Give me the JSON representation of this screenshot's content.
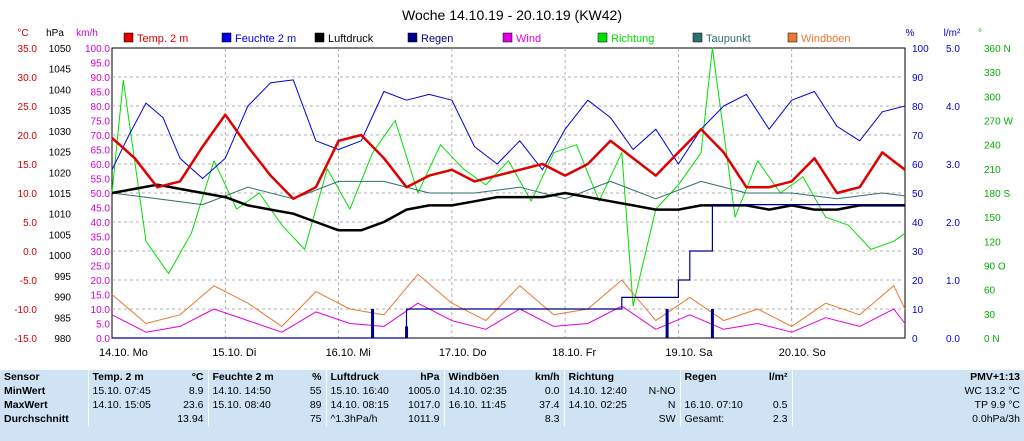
{
  "chart_data": {
    "type": "line",
    "title": "Woche 14.10.19 - 20.10.19 (KW42)",
    "unit_labels": {
      "temp": "°C",
      "pressure": "hPa",
      "wind": "km/h",
      "humidity": "%",
      "rain": "l/m²",
      "direction": "°"
    },
    "axes": {
      "temp": {
        "min": -15,
        "max": 35,
        "ticks": [
          "35.0",
          "30.0",
          "25.0",
          "20.0",
          "15.0",
          "10.0",
          "5.0",
          "0.0",
          "-5.0",
          "-10.0",
          "-15.0"
        ]
      },
      "pressure": {
        "min": 980,
        "max": 1050,
        "ticks": [
          "1050",
          "1045",
          "1040",
          "1035",
          "1030",
          "1025",
          "1020",
          "1015",
          "1010",
          "1005",
          "1000",
          "995",
          "990",
          "985",
          "980"
        ]
      },
      "wind": {
        "min": 0,
        "max": 100,
        "ticks": [
          "100.0",
          "95.0",
          "90.0",
          "85.0",
          "80.0",
          "75.0",
          "70.0",
          "65.0",
          "60.0",
          "55.0",
          "50.0",
          "45.0",
          "40.0",
          "35.0",
          "30.0",
          "25.0",
          "20.0",
          "15.0",
          "10.0",
          "5.0",
          "0.0"
        ]
      },
      "humidity": {
        "min": 0,
        "max": 100,
        "ticks": [
          "100",
          "90",
          "80",
          "70",
          "60",
          "50",
          "40",
          "30",
          "20",
          "10",
          "0"
        ]
      },
      "rain": {
        "min": 0,
        "max": 5,
        "ticks": [
          "5.0",
          "4.0",
          "3.0",
          "2.0",
          "1.0",
          "0.0"
        ]
      },
      "direction": {
        "min": 0,
        "max": 360,
        "ticks": [
          "360 N",
          "330",
          "300",
          "270 W",
          "240",
          "210",
          "180 S",
          "150",
          "120",
          "90 O",
          "60",
          "30",
          "0 N"
        ]
      }
    },
    "x_ticks": [
      "14.10.  Mo",
      "15.10.  Di",
      "16.10.  Mi",
      "17.10.  Do",
      "18.10.  Fr",
      "19.10.  Sa",
      "20.10.  So"
    ],
    "legend": [
      {
        "name": "Temp. 2 m",
        "color": "#e00000"
      },
      {
        "name": "Feuchte  2 m",
        "color": "#0000e0"
      },
      {
        "name": "Luftdruck",
        "color": "#000000"
      },
      {
        "name": "Regen",
        "color": "#00008b"
      },
      {
        "name": "Wind",
        "color": "#e000e0"
      },
      {
        "name": "Richtung",
        "color": "#00e000"
      },
      {
        "name": "Taupunkt",
        "color": "#2f6f6f"
      },
      {
        "name": "Windböen",
        "color": "#e87830"
      }
    ],
    "series": [
      {
        "name": "Temp. 2 m",
        "axis": "temp",
        "color": "#e00000",
        "x": [
          0,
          0.2,
          0.4,
          0.6,
          0.8,
          1.0,
          1.2,
          1.4,
          1.6,
          1.8,
          2.0,
          2.2,
          2.4,
          2.6,
          2.8,
          3.0,
          3.2,
          3.4,
          3.6,
          3.8,
          4.0,
          4.2,
          4.4,
          4.6,
          4.8,
          5.0,
          5.2,
          5.4,
          5.6,
          5.8,
          6.0,
          6.2,
          6.4,
          6.6,
          6.8,
          7.0
        ],
        "y": [
          19.5,
          16,
          11,
          12,
          18,
          23.5,
          18,
          13,
          9,
          11,
          19,
          20,
          16,
          11,
          13,
          14,
          12,
          13,
          14,
          15,
          13,
          15,
          19,
          16,
          13,
          17,
          21,
          17,
          11,
          11,
          12,
          16,
          10,
          11,
          17,
          14
        ]
      },
      {
        "name": "Feuchte  2 m",
        "axis": "humidity",
        "color": "#0000e0",
        "x": [
          0,
          0.15,
          0.3,
          0.45,
          0.6,
          0.8,
          1.0,
          1.2,
          1.4,
          1.6,
          1.8,
          2.0,
          2.2,
          2.4,
          2.6,
          2.8,
          3.0,
          3.2,
          3.4,
          3.6,
          3.8,
          4.0,
          4.2,
          4.4,
          4.6,
          4.8,
          5.0,
          5.2,
          5.4,
          5.6,
          5.8,
          6.0,
          6.2,
          6.4,
          6.6,
          6.8,
          7.0
        ],
        "y": [
          58,
          70,
          81,
          76,
          62,
          55,
          62,
          80,
          88,
          89,
          68,
          65,
          68,
          85,
          82,
          84,
          82,
          66,
          60,
          68,
          58,
          72,
          82,
          76,
          65,
          72,
          60,
          72,
          80,
          84,
          72,
          82,
          85,
          73,
          68,
          78,
          80
        ]
      },
      {
        "name": "Luftdruck",
        "axis": "pressure",
        "color": "#000000",
        "x": [
          0,
          0.2,
          0.4,
          0.6,
          0.8,
          1.0,
          1.2,
          1.4,
          1.6,
          1.8,
          2.0,
          2.2,
          2.4,
          2.6,
          2.8,
          3.0,
          3.2,
          3.4,
          3.6,
          3.8,
          4.0,
          4.2,
          4.4,
          4.6,
          4.8,
          5.0,
          5.2,
          5.4,
          5.6,
          5.8,
          6.0,
          6.2,
          6.4,
          6.6,
          6.8,
          7.0
        ],
        "y": [
          1015,
          1016,
          1017,
          1016,
          1015,
          1014,
          1012,
          1011,
          1010,
          1008,
          1006,
          1006,
          1008,
          1011,
          1012,
          1012,
          1013,
          1014,
          1014,
          1014,
          1015,
          1014,
          1013,
          1012,
          1011,
          1011,
          1012,
          1012,
          1012,
          1011,
          1012,
          1011,
          1011,
          1012,
          1012,
          1012
        ]
      },
      {
        "name": "Taupunkt",
        "axis": "temp",
        "color": "#2f6f6f",
        "x": [
          0,
          0.4,
          0.8,
          1.2,
          1.6,
          2.0,
          2.4,
          2.8,
          3.2,
          3.6,
          4.0,
          4.4,
          4.8,
          5.2,
          5.6,
          6.0,
          6.4,
          6.8,
          7.0
        ],
        "y": [
          10,
          9,
          8,
          11,
          9,
          12,
          12,
          10,
          10,
          11,
          9,
          12,
          9,
          12,
          10,
          10,
          9,
          10,
          9.5
        ]
      },
      {
        "name": "Windböen",
        "axis": "wind",
        "color": "#e87830",
        "x": [
          0,
          0.3,
          0.6,
          0.9,
          1.2,
          1.5,
          1.8,
          2.1,
          2.4,
          2.7,
          3.0,
          3.3,
          3.6,
          3.9,
          4.2,
          4.5,
          4.8,
          5.1,
          5.4,
          5.7,
          6.0,
          6.3,
          6.6,
          6.9,
          7.0
        ],
        "y": [
          15,
          5,
          8,
          18,
          12,
          4,
          16,
          10,
          8,
          22,
          12,
          6,
          18,
          8,
          10,
          20,
          6,
          14,
          6,
          10,
          4,
          12,
          8,
          18,
          10
        ]
      },
      {
        "name": "Wind",
        "axis": "wind",
        "color": "#e000e0",
        "x": [
          0,
          0.3,
          0.6,
          0.9,
          1.2,
          1.5,
          1.8,
          2.1,
          2.4,
          2.7,
          3.0,
          3.3,
          3.6,
          3.9,
          4.2,
          4.5,
          4.8,
          5.1,
          5.4,
          5.7,
          6.0,
          6.3,
          6.6,
          6.9,
          7.0
        ],
        "y": [
          8,
          2,
          4,
          10,
          6,
          2,
          9,
          5,
          4,
          12,
          6,
          3,
          10,
          4,
          5,
          11,
          3,
          8,
          3,
          5,
          2,
          7,
          4,
          10,
          5
        ]
      },
      {
        "name": "Richtung",
        "axis": "direction",
        "color": "#00e000",
        "x": [
          0,
          0.1,
          0.3,
          0.5,
          0.7,
          0.9,
          1.1,
          1.3,
          1.5,
          1.7,
          1.9,
          2.1,
          2.3,
          2.5,
          2.7,
          2.9,
          3.1,
          3.3,
          3.5,
          3.7,
          3.9,
          4.1,
          4.3,
          4.5,
          4.6,
          4.8,
          5.0,
          5.2,
          5.3,
          5.5,
          5.7,
          5.9,
          6.1,
          6.3,
          6.5,
          6.7,
          6.9,
          7.0
        ],
        "y": [
          180,
          320,
          120,
          80,
          130,
          220,
          160,
          180,
          140,
          110,
          210,
          160,
          230,
          270,
          180,
          240,
          210,
          190,
          220,
          170,
          230,
          240,
          170,
          230,
          40,
          160,
          190,
          230,
          360,
          150,
          220,
          180,
          200,
          150,
          140,
          110,
          120,
          130
        ]
      }
    ],
    "rain_total_mm": {
      "x": [
        0,
        2.3,
        2.6,
        4.5,
        4.8,
        5.0,
        5.1,
        5.3,
        7.0
      ],
      "y": [
        0,
        0,
        0.5,
        0.7,
        0.7,
        1.0,
        1.5,
        2.3,
        2.3
      ]
    },
    "rain_bars": {
      "x": [
        2.3,
        2.6,
        4.9,
        5.3
      ],
      "y": [
        0.5,
        0.2,
        0.5,
        0.5
      ]
    }
  },
  "stats": {
    "columns": [
      {
        "title": "Sensor",
        "unit": ""
      },
      {
        "title": "Temp. 2 m",
        "unit": "°C"
      },
      {
        "title": "Feuchte  2 m",
        "unit": "%"
      },
      {
        "title": "Luftdruck",
        "unit": "hPa"
      },
      {
        "title": "Windböen",
        "unit": "km/h"
      },
      {
        "title": "Richtung",
        "unit": ""
      },
      {
        "title": "Regen",
        "unit": "l/m²"
      },
      {
        "title": "PMV+1:13",
        "unit": ""
      }
    ],
    "rows": [
      {
        "label": "MinWert",
        "temp": [
          "15.10.  07:45",
          "8.9"
        ],
        "hum": [
          "14.10.  14:50",
          "55"
        ],
        "press": [
          "15.10.  16:40",
          "1005.0"
        ],
        "gust": [
          "14.10.  02:35",
          "0.0"
        ],
        "dir": [
          "14.10.  12:40",
          "N-NO"
        ],
        "rain": [
          "",
          ""
        ],
        "pmv": "WC 13.2 °C"
      },
      {
        "label": "MaxWert",
        "temp": [
          "14.10.  15:05",
          "23.6"
        ],
        "hum": [
          "15.10.  08:40",
          "89"
        ],
        "press": [
          "14.10.  08:15",
          "1017.0"
        ],
        "gust": [
          "16.10.  11:45",
          "37.4"
        ],
        "dir": [
          "14.10.  02:25",
          "N"
        ],
        "rain": [
          "16.10.  07:10",
          "0.5"
        ],
        "pmv": "TP 9.9 °C"
      },
      {
        "label": "Durchschnitt",
        "temp": [
          "",
          "13.94"
        ],
        "hum": [
          "",
          "75"
        ],
        "press": [
          "^1.3hPa/h",
          "1011.9"
        ],
        "gust": [
          "",
          "8.3"
        ],
        "dir": [
          "",
          "SW"
        ],
        "rain": [
          "Gesamt:",
          "2.3"
        ],
        "pmv": "0.0hPa/3h"
      }
    ]
  }
}
